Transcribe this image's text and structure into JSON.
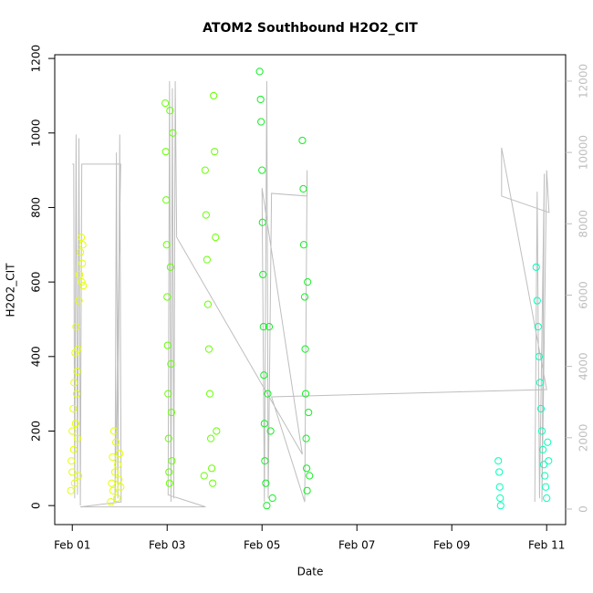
{
  "chart_data": {
    "type": "scatter",
    "title": "ATOM2 Southbound H2O2_CIT",
    "x_label": "Date",
    "y_label": "H2O2_CIT",
    "xlim": [
      0.63,
      11.4
    ],
    "xticks": [
      {
        "value": 1,
        "label": "Feb 01"
      },
      {
        "value": 3,
        "label": "Feb 03"
      },
      {
        "value": 5,
        "label": "Feb 05"
      },
      {
        "value": 7,
        "label": "Feb 07"
      },
      {
        "value": 9,
        "label": "Feb 09"
      },
      {
        "value": 11,
        "label": "Feb 11"
      }
    ],
    "ylim": [
      -51,
      1210
    ],
    "yticks": [
      0,
      200,
      400,
      600,
      800,
      1000,
      1200
    ],
    "y2lim": [
      -435,
      12740
    ],
    "y2ticks": [
      0,
      2000,
      4000,
      6000,
      8000,
      10000,
      12000
    ],
    "y2_color": "#bebebe",
    "series": [
      {
        "color": "#e6ff00",
        "x": [
          0.97,
          0.98,
          1.0,
          1.0,
          1.02,
          1.03,
          1.04,
          1.05,
          1.06,
          1.07,
          1.08,
          1.09,
          1.1,
          1.11,
          1.12,
          1.13,
          1.14,
          1.15,
          1.17,
          1.19,
          1.2,
          1.21,
          1.22,
          1.23,
          1.81,
          1.83,
          1.85,
          1.86,
          1.88,
          1.9,
          1.92,
          1.94,
          1.96,
          1.98,
          2.0,
          2.02
        ],
        "values": [
          40,
          120,
          200,
          90,
          260,
          150,
          330,
          60,
          410,
          220,
          480,
          300,
          360,
          180,
          420,
          80,
          550,
          620,
          680,
          720,
          600,
          650,
          700,
          590,
          10,
          60,
          130,
          40,
          200,
          90,
          170,
          20,
          110,
          70,
          140,
          50
        ]
      },
      {
        "color": "#66ff00",
        "x": [
          2.96,
          2.97,
          2.98,
          2.99,
          3.0,
          3.01,
          3.02,
          3.03,
          3.04,
          3.05,
          3.06,
          3.07,
          3.08,
          3.09,
          3.1,
          3.12,
          3.78,
          3.8,
          3.82,
          3.84,
          3.86,
          3.88,
          3.9,
          3.92,
          3.94,
          3.96,
          3.98,
          4.0,
          4.02,
          4.04
        ],
        "values": [
          1080,
          950,
          820,
          700,
          560,
          430,
          300,
          180,
          90,
          60,
          1060,
          640,
          380,
          250,
          120,
          1000,
          80,
          900,
          780,
          660,
          540,
          420,
          300,
          180,
          100,
          60,
          1100,
          950,
          720,
          200
        ]
      },
      {
        "color": "#11ee22",
        "x": [
          4.95,
          4.97,
          4.98,
          5.0,
          5.01,
          5.02,
          5.03,
          5.04,
          5.05,
          5.06,
          5.08,
          5.1,
          5.12,
          5.15,
          5.18,
          5.22,
          5.85,
          5.87,
          5.88,
          5.9,
          5.91,
          5.92,
          5.93,
          5.94,
          5.95,
          5.96,
          5.98,
          6.0
        ],
        "values": [
          1165,
          1090,
          1030,
          900,
          760,
          620,
          480,
          350,
          220,
          120,
          60,
          0,
          300,
          480,
          200,
          20,
          980,
          850,
          700,
          560,
          420,
          300,
          180,
          100,
          40,
          600,
          250,
          80
        ]
      },
      {
        "color": "#00ffbb",
        "x": [
          9.98,
          10.0,
          10.01,
          10.02,
          10.03,
          10.78,
          10.8,
          10.82,
          10.84,
          10.86,
          10.88,
          10.9,
          10.92,
          10.94,
          10.96,
          10.98,
          11.0,
          11.02,
          11.04
        ],
        "values": [
          120,
          90,
          50,
          20,
          0,
          640,
          550,
          480,
          400,
          330,
          260,
          200,
          150,
          110,
          80,
          50,
          20,
          170,
          120
        ]
      },
      {
        "color": "#bebebe",
        "axis": "y2",
        "x": [
          1.0,
          1.03,
          1.05,
          1.08,
          1.11,
          1.14,
          1.17,
          1.2,
          2.02,
          1.9,
          1.93,
          1.96,
          2.0,
          2.03,
          1.17,
          3.81,
          3.02,
          3.05,
          3.08,
          3.11,
          3.14,
          3.17,
          3.2,
          5.85,
          5.0,
          5.05,
          5.1,
          5.13,
          5.2,
          5.95,
          5.95,
          5.9,
          5.2,
          11.0,
          10.05,
          10.05,
          11.05,
          11.0,
          10.9,
          10.95,
          10.85,
          10.8,
          10.75
        ],
        "values": [
          9672,
          9672,
          300,
          10500,
          400,
          10400,
          100,
          9672,
          9672,
          200,
          10000,
          300,
          10500,
          200,
          60,
          60,
          400,
          12000,
          200,
          11800,
          300,
          12000,
          7625,
          1535,
          9000,
          200,
          12000,
          300,
          8853,
          8777,
          9500,
          200,
          3147,
          3352,
          10133,
          8777,
          8316,
          9500,
          200,
          9400,
          300,
          8900,
          200
        ]
      }
    ]
  }
}
